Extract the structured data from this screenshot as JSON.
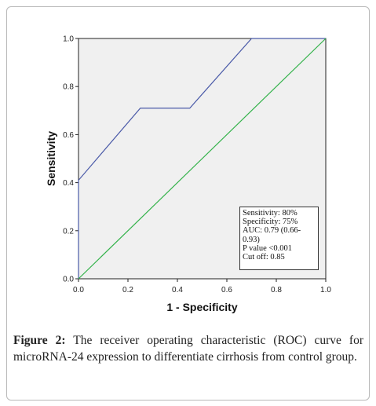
{
  "chart_data": {
    "type": "line",
    "title": "",
    "xlabel": "1 - Specificity",
    "ylabel": "Sensitivity",
    "xlim": [
      0.0,
      1.0
    ],
    "ylim": [
      0.0,
      1.0
    ],
    "xticks": [
      "0.0",
      "0.2",
      "0.4",
      "0.6",
      "0.8",
      "1.0"
    ],
    "yticks": [
      "0.0",
      "0.2",
      "0.4",
      "0.6",
      "0.8",
      "1.0"
    ],
    "grid": false,
    "background": "#f0f0f0",
    "series": [
      {
        "color": "#4a5aa8",
        "x": [
          0.0,
          0.0,
          0.25,
          0.45,
          0.7,
          1.0
        ],
        "y": [
          0.0,
          0.41,
          0.71,
          0.71,
          1.0,
          1.0
        ]
      },
      {
        "color": "#33b24a",
        "x": [
          0.0,
          1.0
        ],
        "y": [
          0.0,
          1.0
        ]
      }
    ],
    "annotation": [
      "Sensitivity: 80%",
      "Specificity: 75%",
      "AUC: 0.79 (0.66-0.93)",
      "P value <0.001",
      "Cut off: 0.85"
    ]
  },
  "caption": {
    "label": "Figure 2:",
    "text": "The receiver operating characteristic (ROC) curve for microRNA-24 expression to differentiate cirrhosis from control group."
  }
}
